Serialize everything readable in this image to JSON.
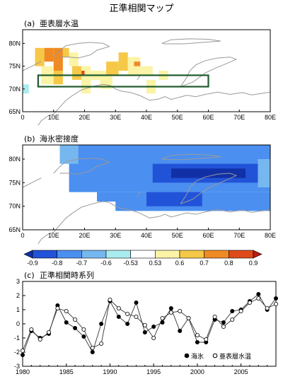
{
  "title": "正準相関マップ",
  "colors": {
    "scale": [
      "#1230a6",
      "#2153d8",
      "#4b8ff0",
      "#76b7ef",
      "#a9ecf0",
      "#ffffff",
      "#fbf3a6",
      "#f6c847",
      "#ef8a24",
      "#df4a1a",
      "#b81c12"
    ],
    "coast": "#9a9a9a",
    "box": "#1f5a2c",
    "line": "#333333"
  },
  "chart_data": [
    {
      "type": "heatmap",
      "panel_label": "(a)",
      "title": "亜表層水温",
      "x_tick_labels": [
        "0",
        "10E",
        "20E",
        "30E",
        "40E",
        "50E",
        "60E",
        "70E",
        "80E"
      ],
      "y_tick_labels": [
        "65N",
        "70N",
        "75N",
        "80N"
      ],
      "xlim": [
        0,
        80
      ],
      "ylim": [
        65,
        83
      ],
      "cells": [
        {
          "lon": [
            4,
            7
          ],
          "lat": [
            75,
            79
          ],
          "v": 0.6
        },
        {
          "lon": [
            7,
            10
          ],
          "lat": [
            76,
            79
          ],
          "v": 0.7
        },
        {
          "lon": [
            10,
            13
          ],
          "lat": [
            74,
            79
          ],
          "v": 0.7
        },
        {
          "lon": [
            13,
            15
          ],
          "lat": [
            77,
            79
          ],
          "v": 0.6
        },
        {
          "lon": [
            6,
            10
          ],
          "lat": [
            71,
            75
          ],
          "v": 0.53
        },
        {
          "lon": [
            10,
            13
          ],
          "lat": [
            71,
            74
          ],
          "v": 0.6
        },
        {
          "lon": [
            15,
            18
          ],
          "lat": [
            75,
            78
          ],
          "v": 0.53
        },
        {
          "lon": [
            16,
            19
          ],
          "lat": [
            72,
            75
          ],
          "v": 0.6
        },
        {
          "lon": [
            19,
            22
          ],
          "lat": [
            69,
            75
          ],
          "v": 0.53
        },
        {
          "lon": [
            22,
            27
          ],
          "lat": [
            72,
            74
          ],
          "v": 0.53
        },
        {
          "lon": [
            27,
            31
          ],
          "lat": [
            73,
            76
          ],
          "v": 0.6
        },
        {
          "lon": [
            31,
            34
          ],
          "lat": [
            74,
            78
          ],
          "v": 0.6
        },
        {
          "lon": [
            34,
            38
          ],
          "lat": [
            73,
            77
          ],
          "v": 0.53
        },
        {
          "lon": [
            25,
            29
          ],
          "lat": [
            70,
            73
          ],
          "v": 0.53
        },
        {
          "lon": [
            38,
            42
          ],
          "lat": [
            73,
            75
          ],
          "v": 0.53
        },
        {
          "lon": [
            40,
            43
          ],
          "lat": [
            69,
            72
          ],
          "v": 0.53
        },
        {
          "lon": [
            44,
            47
          ],
          "lat": [
            72,
            74
          ],
          "v": 0.53
        },
        {
          "lon": [
            19,
            20
          ],
          "lat": [
            73,
            74
          ],
          "v": 0.8
        },
        {
          "lon": [
            0,
            2
          ],
          "lat": [
            69,
            71
          ],
          "v": -0.53
        },
        {
          "lon": [
            36,
            38
          ],
          "lat": [
            75,
            76
          ],
          "v": 0.7
        }
      ],
      "box": {
        "lon": [
          5,
          60
        ],
        "lat": [
          70.5,
          73
        ]
      }
    },
    {
      "type": "heatmap",
      "panel_label": "(b)",
      "title": "海氷密接度",
      "x_tick_labels": [
        "0",
        "10E",
        "20E",
        "30E",
        "40E",
        "50E",
        "60E",
        "70E",
        "80E"
      ],
      "y_tick_labels": [
        "65N",
        "70N",
        "75N",
        "80N"
      ],
      "xlim": [
        0,
        80
      ],
      "ylim": [
        65,
        83
      ],
      "cells": [
        {
          "lon": [
            15,
            80
          ],
          "lat": [
            73,
            83
          ],
          "v": -0.7
        },
        {
          "lon": [
            24,
            80
          ],
          "lat": [
            71,
            73
          ],
          "v": -0.7
        },
        {
          "lon": [
            30,
            80
          ],
          "lat": [
            69,
            71
          ],
          "v": -0.7
        },
        {
          "lon": [
            42,
            76
          ],
          "lat": [
            75,
            79
          ],
          "v": -0.8
        },
        {
          "lon": [
            48,
            72
          ],
          "lat": [
            76,
            78
          ],
          "v": -0.9
        },
        {
          "lon": [
            40,
            58
          ],
          "lat": [
            70,
            73
          ],
          "v": -0.8
        },
        {
          "lon": [
            12,
            18
          ],
          "lat": [
            79,
            83
          ],
          "v": -0.6
        },
        {
          "lon": [
            76,
            80
          ],
          "lat": [
            74,
            80
          ],
          "v": -0.6
        }
      ]
    },
    {
      "type": "legend_colorbar",
      "labels": [
        "-0.9",
        "-0.8",
        "-0.7",
        "-0.6",
        "-0.53",
        "0.53",
        "0.6",
        "0.7",
        "0.8",
        "0.9"
      ]
    },
    {
      "type": "line",
      "panel_label": "(c)",
      "title": "正準相関時系列",
      "x": [
        1980,
        1981,
        1982,
        1983,
        1984,
        1985,
        1986,
        1987,
        1988,
        1989,
        1990,
        1991,
        1992,
        1993,
        1994,
        1995,
        1996,
        1997,
        1998,
        1999,
        2000,
        2001,
        2002,
        2003,
        2004,
        2005,
        2006,
        2007,
        2008,
        2009
      ],
      "xlim": [
        1980,
        2009
      ],
      "ylim": [
        -3,
        3
      ],
      "x_ticks": [
        1980,
        1985,
        1990,
        1995,
        2000,
        2005
      ],
      "y_ticks": [
        -3,
        -2,
        -1,
        0,
        1,
        2,
        3
      ],
      "series": [
        {
          "name": "海氷",
          "marker": "filled",
          "values": [
            -2.2,
            -0.5,
            -1.0,
            -0.7,
            1.3,
            0.1,
            -0.3,
            -0.9,
            -2.0,
            0.0,
            1.6,
            0.5,
            0.0,
            1.5,
            -0.6,
            -0.2,
            0.1,
            1.1,
            -0.5,
            0.4,
            -1.3,
            -1.3,
            0.3,
            0.1,
            0.9,
            1.0,
            1.6,
            2.1,
            1.0,
            1.8
          ]
        },
        {
          "name": "亜表層水温",
          "marker": "open",
          "values": [
            -1.9,
            -0.4,
            -1.1,
            -0.6,
            1.1,
            0.9,
            0.3,
            -0.4,
            -1.7,
            -1.4,
            1.7,
            1.1,
            0.7,
            0.5,
            -0.1,
            -1.0,
            0.4,
            0.8,
            0.9,
            0.4,
            -0.8,
            -1.1,
            0.5,
            -0.2,
            0.3,
            0.9,
            1.5,
            1.8,
            1.1,
            1.4
          ]
        }
      ]
    }
  ]
}
